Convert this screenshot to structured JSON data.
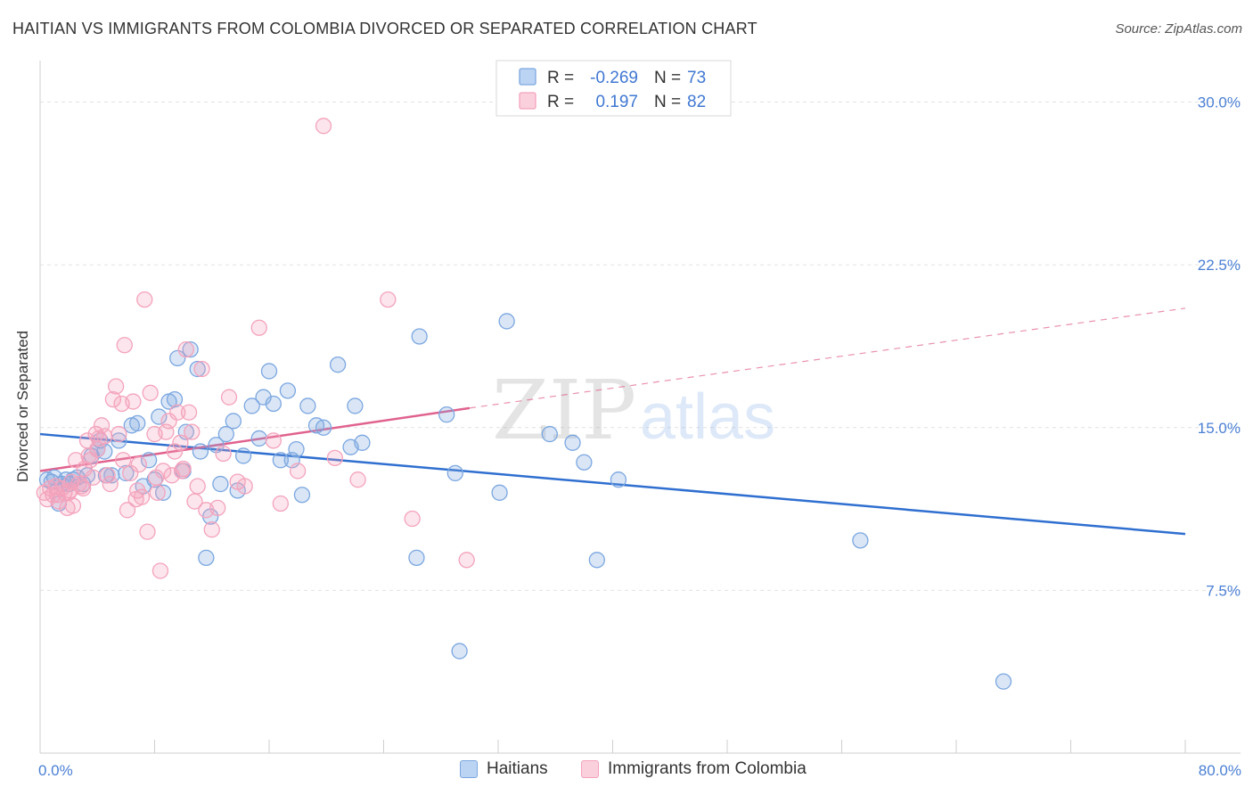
{
  "title": "HAITIAN VS IMMIGRANTS FROM COLOMBIA DIVORCED OR SEPARATED CORRELATION CHART",
  "source": "Source: ZipAtlas.com",
  "watermark": {
    "zip": "ZIP",
    "atlas": "atlas"
  },
  "legend": {
    "rows": [
      {
        "r_label": "R =",
        "r_value": "-0.269",
        "n_label": "N =",
        "n_value": "73"
      },
      {
        "r_label": "R =",
        "r_value": "0.197",
        "n_label": "N =",
        "n_value": "82"
      }
    ]
  },
  "chart_data": {
    "type": "scatter",
    "title": "HAITIAN VS IMMIGRANTS FROM COLOMBIA DIVORCED OR SEPARATED CORRELATION CHART",
    "xlabel": "",
    "ylabel": "Divorced or Separated",
    "xlim": [
      0,
      80
    ],
    "ylim": [
      0,
      31.5
    ],
    "x_tick_labels": [
      "0.0%",
      "80.0%"
    ],
    "y_ticks": [
      7.5,
      15.0,
      22.5,
      30.0
    ],
    "y_tick_labels": [
      "7.5%",
      "15.0%",
      "22.5%",
      "30.0%"
    ],
    "grid": true,
    "legend_position": "top-center",
    "series": [
      {
        "name": "Haitians",
        "color": "#7ba7e0",
        "line_color": "#2f6fd0",
        "trend": {
          "x": [
            0,
            80
          ],
          "y": [
            14.7,
            10.1
          ]
        },
        "points": [
          [
            0.5,
            12.6
          ],
          [
            0.8,
            12.5
          ],
          [
            1.0,
            12.7
          ],
          [
            1.3,
            11.5
          ],
          [
            1.5,
            12.4
          ],
          [
            1.8,
            12.6
          ],
          [
            2.0,
            12.4
          ],
          [
            2.3,
            12.6
          ],
          [
            2.6,
            12.7
          ],
          [
            3.0,
            12.4
          ],
          [
            3.3,
            12.8
          ],
          [
            3.6,
            13.7
          ],
          [
            4.0,
            14.0
          ],
          [
            4.2,
            14.4
          ],
          [
            4.6,
            12.8
          ],
          [
            5.0,
            12.8
          ],
          [
            5.5,
            14.4
          ],
          [
            6.0,
            12.9
          ],
          [
            6.4,
            15.1
          ],
          [
            6.8,
            15.2
          ],
          [
            7.2,
            12.3
          ],
          [
            7.6,
            13.5
          ],
          [
            8.0,
            12.6
          ],
          [
            8.3,
            15.5
          ],
          [
            8.6,
            12.0
          ],
          [
            9.0,
            16.2
          ],
          [
            9.4,
            16.3
          ],
          [
            9.6,
            18.2
          ],
          [
            10.0,
            13.0
          ],
          [
            10.2,
            14.8
          ],
          [
            10.5,
            18.6
          ],
          [
            11.0,
            17.7
          ],
          [
            11.2,
            13.9
          ],
          [
            11.6,
            9.0
          ],
          [
            11.9,
            10.9
          ],
          [
            12.3,
            14.2
          ],
          [
            12.6,
            12.4
          ],
          [
            13.0,
            14.7
          ],
          [
            13.5,
            15.3
          ],
          [
            13.8,
            12.1
          ],
          [
            14.2,
            13.7
          ],
          [
            14.8,
            16.0
          ],
          [
            15.3,
            14.5
          ],
          [
            15.6,
            16.4
          ],
          [
            16.0,
            17.6
          ],
          [
            16.3,
            16.1
          ],
          [
            16.8,
            13.5
          ],
          [
            17.3,
            16.7
          ],
          [
            17.6,
            13.5
          ],
          [
            17.9,
            14.0
          ],
          [
            18.3,
            11.9
          ],
          [
            18.7,
            16.0
          ],
          [
            19.3,
            15.1
          ],
          [
            19.8,
            15.0
          ],
          [
            20.8,
            17.9
          ],
          [
            21.7,
            14.1
          ],
          [
            22.0,
            16.0
          ],
          [
            22.5,
            14.3
          ],
          [
            26.5,
            19.2
          ],
          [
            26.3,
            9.0
          ],
          [
            28.4,
            15.6
          ],
          [
            29.0,
            12.9
          ],
          [
            29.3,
            4.7
          ],
          [
            32.1,
            12.0
          ],
          [
            32.6,
            19.9
          ],
          [
            35.6,
            14.7
          ],
          [
            37.2,
            14.3
          ],
          [
            38.0,
            13.4
          ],
          [
            38.9,
            8.9
          ],
          [
            40.4,
            12.6
          ],
          [
            57.3,
            9.8
          ],
          [
            67.3,
            3.3
          ],
          [
            4.5,
            13.9
          ]
        ]
      },
      {
        "name": "Immigrants from Colombia",
        "color": "#f4a3bc",
        "line_color": "#e0628e",
        "trend": {
          "x": [
            0,
            30
          ],
          "y": [
            13.0,
            15.9
          ]
        },
        "trend_dashed": {
          "x": [
            30,
            80
          ],
          "y": [
            15.9,
            20.5
          ]
        },
        "points": [
          [
            0.3,
            12.0
          ],
          [
            0.5,
            11.7
          ],
          [
            0.7,
            12.2
          ],
          [
            0.9,
            11.9
          ],
          [
            1.1,
            12.3
          ],
          [
            1.3,
            11.6
          ],
          [
            1.5,
            12.2
          ],
          [
            1.7,
            12.0
          ],
          [
            1.9,
            11.3
          ],
          [
            2.1,
            12.1
          ],
          [
            2.3,
            11.4
          ],
          [
            2.5,
            13.5
          ],
          [
            2.7,
            12.4
          ],
          [
            2.9,
            12.3
          ],
          [
            3.1,
            13.1
          ],
          [
            3.3,
            14.4
          ],
          [
            3.5,
            13.5
          ],
          [
            3.7,
            12.7
          ],
          [
            3.9,
            14.7
          ],
          [
            4.1,
            14.5
          ],
          [
            4.3,
            15.1
          ],
          [
            4.5,
            14.6
          ],
          [
            4.7,
            12.8
          ],
          [
            4.9,
            12.4
          ],
          [
            5.1,
            16.3
          ],
          [
            5.3,
            16.9
          ],
          [
            5.5,
            14.7
          ],
          [
            5.7,
            16.1
          ],
          [
            5.9,
            18.8
          ],
          [
            6.1,
            11.2
          ],
          [
            6.3,
            12.9
          ],
          [
            6.5,
            16.2
          ],
          [
            6.7,
            11.7
          ],
          [
            6.9,
            13.3
          ],
          [
            7.1,
            11.8
          ],
          [
            7.3,
            20.9
          ],
          [
            7.5,
            10.2
          ],
          [
            7.7,
            16.6
          ],
          [
            8.0,
            14.7
          ],
          [
            8.2,
            12.0
          ],
          [
            8.4,
            8.4
          ],
          [
            8.6,
            13.0
          ],
          [
            8.8,
            14.8
          ],
          [
            9.0,
            15.3
          ],
          [
            9.2,
            12.8
          ],
          [
            9.4,
            13.9
          ],
          [
            9.6,
            15.7
          ],
          [
            9.8,
            14.3
          ],
          [
            10.0,
            13.1
          ],
          [
            10.2,
            18.6
          ],
          [
            10.4,
            15.7
          ],
          [
            10.6,
            14.8
          ],
          [
            10.8,
            11.6
          ],
          [
            11.0,
            12.3
          ],
          [
            11.3,
            17.7
          ],
          [
            11.6,
            11.2
          ],
          [
            12.0,
            10.3
          ],
          [
            12.4,
            11.3
          ],
          [
            12.8,
            13.8
          ],
          [
            13.2,
            16.4
          ],
          [
            13.8,
            12.5
          ],
          [
            14.3,
            12.3
          ],
          [
            15.3,
            19.6
          ],
          [
            16.3,
            14.4
          ],
          [
            16.8,
            11.5
          ],
          [
            18.0,
            13.0
          ],
          [
            19.8,
            28.9
          ],
          [
            20.6,
            13.6
          ],
          [
            22.2,
            12.6
          ],
          [
            24.3,
            20.9
          ],
          [
            26.0,
            10.8
          ],
          [
            29.8,
            8.9
          ],
          [
            2.0,
            12.0
          ],
          [
            3.4,
            13.7
          ],
          [
            4.0,
            14.0
          ],
          [
            5.8,
            13.5
          ],
          [
            1.2,
            11.9
          ],
          [
            8.1,
            12.7
          ],
          [
            6.8,
            12.1
          ],
          [
            9.9,
            13.0
          ],
          [
            3.0,
            12.2
          ],
          [
            2.2,
            12.5
          ]
        ]
      }
    ]
  },
  "bottom_legend": [
    "Haitians",
    "Immigrants from Colombia"
  ]
}
